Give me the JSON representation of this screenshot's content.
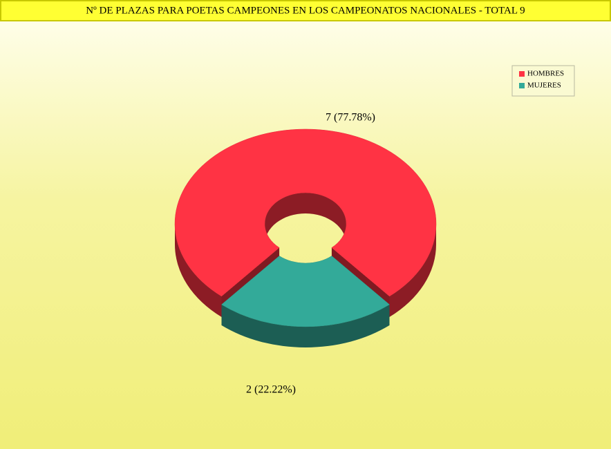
{
  "chart_data": {
    "type": "pie",
    "donut": true,
    "title": "Nº DE PLAZAS PARA POETAS CAMPEONES EN LOS CAMPEONATOS NACIONALES - TOTAL 9",
    "categories": [
      "HOMBRES",
      "MUJERES"
    ],
    "values": [
      7,
      2
    ],
    "value_labels": [
      "7 (77.78%)",
      "2 (22.22%)"
    ],
    "colors": [
      "#ff3344",
      "#33aa99"
    ],
    "legend": "top-right"
  }
}
